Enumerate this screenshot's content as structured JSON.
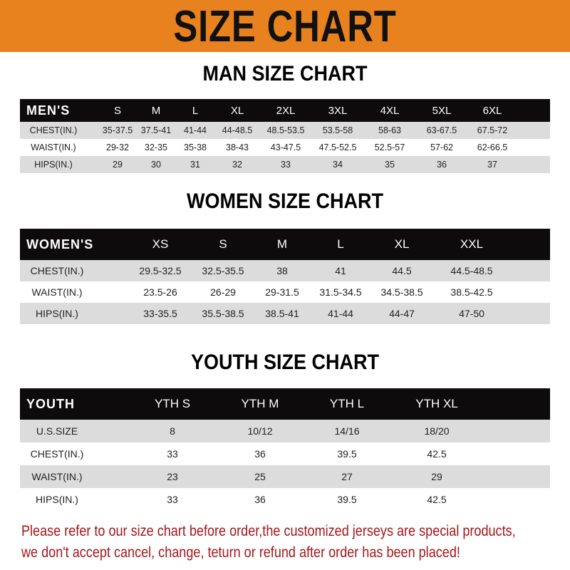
{
  "banner": {
    "title": "SIZE CHART",
    "color": "#E8821E"
  },
  "men": {
    "title": "MAN SIZE CHART",
    "header": [
      "MEN'S",
      "S",
      "M",
      "L",
      "XL",
      "2XL",
      "3XL",
      "4XL",
      "5XL",
      "6XL"
    ],
    "rows": [
      [
        "CHEST(IN.)",
        "35-37.5",
        "37.5-41",
        "41-44",
        "44-48.5",
        "48.5-53.5",
        "53.5-58",
        "58-63",
        "63-67.5",
        "67.5-72"
      ],
      [
        "WAIST(IN.)",
        "29-32",
        "32-35",
        "35-38",
        "38-43",
        "43-47.5",
        "47.5-52.5",
        "52.5-57",
        "57-62",
        "62-66.5"
      ],
      [
        "HIPS(IN.)",
        "29",
        "30",
        "31",
        "32",
        "33",
        "34",
        "35",
        "36",
        "37"
      ]
    ]
  },
  "women": {
    "title": "WOMEN SIZE CHART",
    "header": [
      "WOMEN'S",
      "XS",
      "S",
      "M",
      "L",
      "XL",
      "XXL"
    ],
    "rows": [
      [
        "CHEST(IN.)",
        "29.5-32.5",
        "32.5-35.5",
        "38",
        "41",
        "44.5",
        "44.5-48.5"
      ],
      [
        "WAIST(IN.)",
        "23.5-26",
        "26-29",
        "29-31.5",
        "31.5-34.5",
        "34.5-38.5",
        "38.5-42.5"
      ],
      [
        "HIPS(IN.)",
        "33-35.5",
        "35.5-38.5",
        "38.5-41",
        "41-44",
        "44-47",
        "47-50"
      ]
    ]
  },
  "youth": {
    "title": "YOUTH SIZE CHART",
    "header": [
      "YOUTH",
      "YTH S",
      "YTH M",
      "YTH L",
      "YTH XL"
    ],
    "rows": [
      [
        "U.S.SIZE",
        "8",
        "10/12",
        "14/16",
        "18/20"
      ],
      [
        "CHEST(IN.)",
        "33",
        "36",
        "39.5",
        "42.5"
      ],
      [
        "WAIST(IN.)",
        "23",
        "25",
        "27",
        "29"
      ],
      [
        "HIPS(IN.)",
        "33",
        "36",
        "39.5",
        "42.5"
      ]
    ]
  },
  "notice": {
    "line1": "Please refer to our size chart before order,the customized jerseys are special products,",
    "line2": "we don't accept cancel, change, teturn or refund after order has been placed!",
    "color": "#a4161a"
  }
}
